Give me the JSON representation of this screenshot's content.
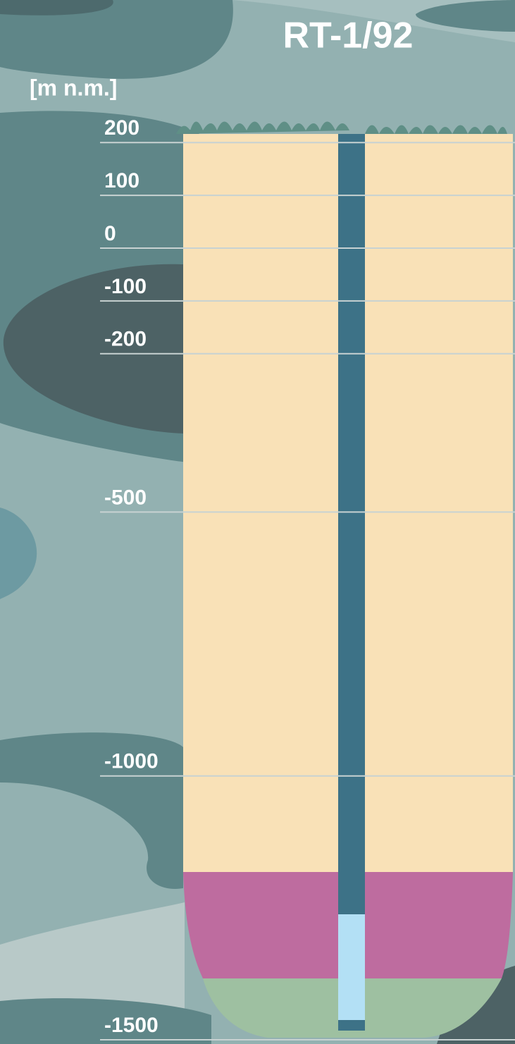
{
  "title": "RT-1/92",
  "axis": {
    "label": "[m n.m.]",
    "ticks": [
      200,
      100,
      0,
      -100,
      -200,
      -500,
      -1000,
      -1500
    ]
  }
}
